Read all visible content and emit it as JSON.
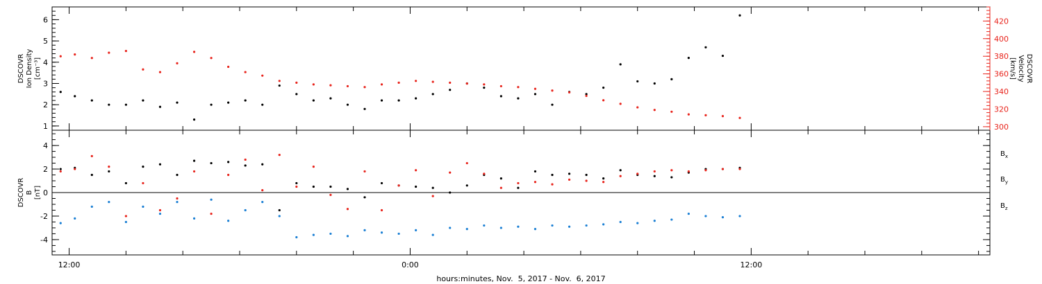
{
  "chart_data": [
    {
      "type": "scatter",
      "panel": "top",
      "left_axis": {
        "title_lines": [
          "DSCOVR",
          "Ion Density"
        ],
        "unit": "[cm⁻³]",
        "ylim": [
          0.8,
          6.6
        ],
        "ticks": [
          "1",
          "2",
          "3",
          "4",
          "5",
          "6"
        ],
        "color": "#000000"
      },
      "right_axis": {
        "title_lines": [
          "DSCOVR",
          "Velocity"
        ],
        "unit": "[km/s]",
        "ylim": [
          296,
          436
        ],
        "ticks": [
          "300",
          "320",
          "340",
          "360",
          "380",
          "400",
          "420"
        ],
        "color": "#e8241c"
      },
      "grid": false,
      "series": [
        {
          "axis": "left",
          "color": "#000000",
          "x_hours": [
            -12.3,
            -11.8,
            -11.2,
            -10.6,
            -10.0,
            -9.4,
            -8.8,
            -8.2,
            -7.6,
            -7.0,
            -6.4,
            -5.8,
            -5.2,
            -4.6,
            -4.0,
            -3.4,
            -2.8,
            -2.2,
            -1.6,
            -1.0,
            -0.4,
            0.2,
            0.8,
            1.4,
            2.0,
            2.6,
            3.2,
            3.8,
            4.4,
            5.0,
            5.6,
            6.2,
            6.8,
            7.4,
            8.0,
            8.6,
            9.2,
            9.8,
            10.4,
            11.0,
            11.6
          ],
          "y": [
            2.6,
            2.4,
            2.2,
            2.0,
            2.0,
            2.2,
            1.9,
            2.1,
            1.3,
            2.0,
            2.1,
            2.2,
            2.0,
            2.9,
            2.5,
            2.2,
            2.3,
            2.0,
            1.8,
            2.2,
            2.2,
            2.3,
            2.5,
            2.7,
            3.0,
            2.8,
            2.4,
            2.3,
            2.5,
            2.0,
            2.6,
            2.5,
            2.8,
            3.9,
            3.1,
            3.0,
            3.2,
            4.2,
            4.7,
            4.3,
            6.2
          ]
        },
        {
          "axis": "right",
          "color": "#e8241c",
          "x_hours": [
            -12.3,
            -11.8,
            -11.2,
            -10.6,
            -10.0,
            -9.4,
            -8.8,
            -8.2,
            -7.6,
            -7.0,
            -6.4,
            -5.8,
            -5.2,
            -4.6,
            -4.0,
            -3.4,
            -2.8,
            -2.2,
            -1.6,
            -1.0,
            -0.4,
            0.2,
            0.8,
            1.4,
            2.0,
            2.6,
            3.2,
            3.8,
            4.4,
            5.0,
            5.6,
            6.2,
            6.8,
            7.4,
            8.0,
            8.6,
            9.2,
            9.8,
            10.4,
            11.0,
            11.6
          ],
          "y": [
            380,
            382,
            378,
            384,
            386,
            365,
            362,
            372,
            385,
            378,
            368,
            362,
            358,
            352,
            350,
            348,
            347,
            346,
            345,
            348,
            350,
            352,
            351,
            350,
            349,
            348,
            346,
            345,
            343,
            341,
            339,
            335,
            330,
            326,
            322,
            319,
            317,
            314,
            313,
            312,
            310
          ]
        }
      ]
    },
    {
      "type": "scatter",
      "panel": "bottom",
      "left_axis": {
        "title_lines": [
          "DSCOVR",
          "B"
        ],
        "unit": "[nT]",
        "ylim": [
          -5.3,
          5.3
        ],
        "ticks": [
          "-4",
          "-2",
          "0",
          "2",
          "4"
        ],
        "color": "#000000"
      },
      "grid": false,
      "zero_line": true,
      "series": [
        {
          "name": "Bx",
          "label_base": "B",
          "label_sub": "x",
          "color": "#000000",
          "x_hours": [
            -12.3,
            -11.8,
            -11.2,
            -10.6,
            -10.0,
            -9.4,
            -8.8,
            -8.2,
            -7.6,
            -7.0,
            -6.4,
            -5.8,
            -5.2,
            -4.6,
            -4.0,
            -3.4,
            -2.8,
            -2.2,
            -1.6,
            -1.0,
            -0.4,
            0.2,
            0.8,
            1.4,
            2.0,
            2.6,
            3.2,
            3.8,
            4.4,
            5.0,
            5.6,
            6.2,
            6.8,
            7.4,
            8.0,
            8.6,
            9.2,
            9.8,
            10.4,
            11.0,
            11.6
          ],
          "y": [
            2.0,
            2.1,
            1.5,
            1.8,
            0.8,
            2.2,
            2.4,
            1.5,
            2.7,
            2.5,
            2.6,
            2.3,
            2.4,
            -1.5,
            0.8,
            0.5,
            0.5,
            0.3,
            -0.4,
            0.8,
            0.6,
            0.5,
            0.4,
            0.0,
            0.6,
            1.5,
            1.2,
            0.4,
            1.8,
            1.5,
            1.6,
            1.5,
            1.2,
            1.9,
            1.5,
            1.4,
            1.3,
            1.7,
            2.0,
            2.0,
            2.1
          ]
        },
        {
          "name": "By",
          "label_base": "B",
          "label_sub": "y",
          "color": "#1a7fd4",
          "x_hours": [
            -12.3,
            -11.8,
            -11.2,
            -10.6,
            -10.0,
            -9.4,
            -8.8,
            -8.2,
            -7.6,
            -7.0,
            -6.4,
            -5.8,
            -5.2,
            -4.6,
            -4.0,
            -3.4,
            -2.8,
            -2.2,
            -1.6,
            -1.0,
            -0.4,
            0.2,
            0.8,
            1.4,
            2.0,
            2.6,
            3.2,
            3.8,
            4.4,
            5.0,
            5.6,
            6.2,
            6.8,
            7.4,
            8.0,
            8.6,
            9.2,
            9.8,
            10.4,
            11.0,
            11.6
          ],
          "y": [
            -2.6,
            -2.2,
            -1.2,
            -0.8,
            -2.5,
            -1.2,
            -1.8,
            -0.8,
            -2.2,
            -0.6,
            -2.4,
            -1.5,
            -0.8,
            -2.0,
            -3.8,
            -3.6,
            -3.5,
            -3.7,
            -3.2,
            -3.4,
            -3.5,
            -3.2,
            -3.6,
            -3.0,
            -3.1,
            -2.8,
            -3.0,
            -2.9,
            -3.1,
            -2.8,
            -2.9,
            -2.8,
            -2.7,
            -2.5,
            -2.6,
            -2.4,
            -2.3,
            -1.8,
            -2.0,
            -2.1,
            -2.0
          ]
        },
        {
          "name": "Bz",
          "label_base": "B",
          "label_sub": "z",
          "color": "#e8241c",
          "x_hours": [
            -12.3,
            -11.8,
            -11.2,
            -10.6,
            -10.0,
            -9.4,
            -8.8,
            -8.2,
            -7.6,
            -7.0,
            -6.4,
            -5.8,
            -5.2,
            -4.6,
            -4.0,
            -3.4,
            -2.8,
            -2.2,
            -1.6,
            -1.0,
            -0.4,
            0.2,
            0.8,
            1.4,
            2.0,
            2.6,
            3.2,
            3.8,
            4.4,
            5.0,
            5.6,
            6.2,
            6.8,
            7.4,
            8.0,
            8.6,
            9.2,
            9.8,
            10.4,
            11.0,
            11.6
          ],
          "y": [
            1.8,
            2.0,
            3.1,
            2.2,
            -2.0,
            0.8,
            -1.5,
            -0.5,
            1.8,
            -1.8,
            1.5,
            2.8,
            0.2,
            3.2,
            0.5,
            2.2,
            -0.2,
            -1.4,
            1.8,
            -1.5,
            0.6,
            1.9,
            -0.3,
            1.7,
            2.5,
            1.6,
            0.4,
            0.8,
            0.9,
            0.7,
            1.1,
            1.0,
            0.9,
            1.4,
            1.6,
            1.8,
            1.9,
            1.8,
            1.9,
            2.0,
            2.0
          ]
        }
      ]
    }
  ],
  "x_axis": {
    "title": "hours:minutes, Nov.  5, 2017 - Nov.  6, 2017",
    "range_hours": [
      -12.6,
      20.4
    ],
    "tick_labels": [
      {
        "hours": -12,
        "text": "12:00"
      },
      {
        "hours": 0,
        "text": "0:00"
      },
      {
        "hours": 12,
        "text": "12:00"
      }
    ],
    "minor_every_hours": 2
  }
}
